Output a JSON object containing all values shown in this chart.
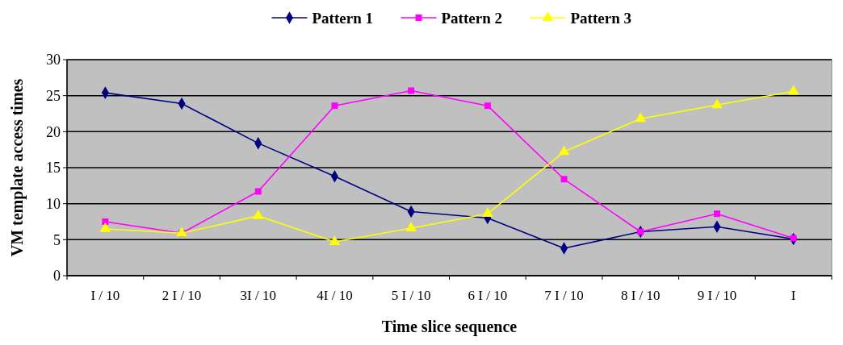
{
  "chart_data": {
    "type": "line",
    "xlabel": "Time slice sequence",
    "ylabel": "VM template access times",
    "categories": [
      "I / 10",
      "2 I / 10",
      "3I / 10",
      "4I / 10",
      "5 I / 10",
      "6 I / 10",
      "7 I / 10",
      "8 I / 10",
      "9 I / 10",
      "I"
    ],
    "series": [
      {
        "name": "Pattern 1",
        "color": "#000080",
        "marker": "diamond",
        "values": [
          25.4,
          23.9,
          18.4,
          13.8,
          8.9,
          8.0,
          3.8,
          6.1,
          6.8,
          5.1
        ]
      },
      {
        "name": "Pattern 2",
        "color": "#ff00ff",
        "marker": "square",
        "values": [
          7.5,
          5.9,
          11.7,
          23.6,
          25.7,
          23.6,
          13.4,
          6.1,
          8.6,
          5.2
        ]
      },
      {
        "name": "Pattern 3",
        "color": "#ffff00",
        "marker": "triangle",
        "values": [
          6.5,
          5.9,
          8.3,
          4.7,
          6.6,
          8.6,
          17.2,
          21.8,
          23.7,
          25.6
        ]
      }
    ],
    "ylim": [
      0,
      30
    ],
    "yticks": [
      0,
      5,
      10,
      15,
      20,
      25,
      30
    ],
    "grid": "y",
    "legend": "top"
  }
}
